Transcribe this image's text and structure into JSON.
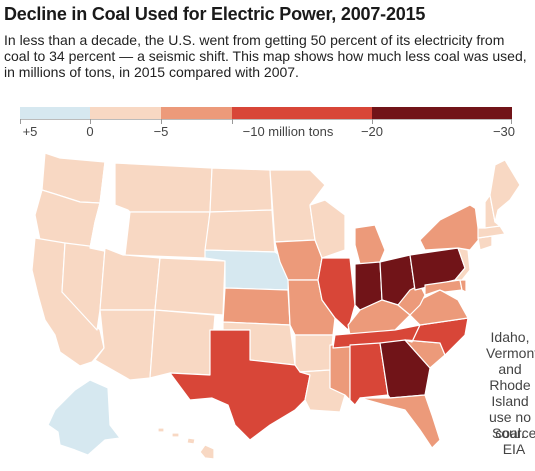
{
  "header": {
    "title": "Decline in Coal Used for Electric Power, 2007-2015",
    "subtitle": "In less than a decade, the U.S. went from getting 50 percent of its electricity from coal to 34 percent — a seismic shift. This map shows how much less coal was used, in millions of tons, in 2015 compared with 2007."
  },
  "legend": {
    "bins": [
      {
        "color": "#d6e8f0"
      },
      {
        "color": "#f8d8c3"
      },
      {
        "color": "#ec9a7a"
      },
      {
        "color": "#d84638"
      },
      {
        "color": "#711418"
      }
    ],
    "labels": [
      "+5",
      "0",
      "−5",
      "−10 million tons",
      "−20",
      "−30"
    ]
  },
  "map": {
    "classes": {
      "gain": "#d6e8f0",
      "small": "#f8d8c3",
      "medium": "#ec9a7a",
      "large": "#d84638",
      "largest": "#711418",
      "none": "#ffffff"
    },
    "states": {
      "WA": "small",
      "OR": "small",
      "CA": "small",
      "NV": "small",
      "ID": "none",
      "MT": "small",
      "WY": "small",
      "UT": "small",
      "AZ": "small",
      "CO": "small",
      "NM": "small",
      "ND": "small",
      "SD": "small",
      "NE": "gain",
      "KS": "medium",
      "OK": "small",
      "TX": "large",
      "MN": "small",
      "IA": "medium",
      "MO": "medium",
      "AR": "small",
      "LA": "small",
      "WI": "small",
      "IL": "large",
      "MS": "medium",
      "MI": "medium",
      "IN": "largest",
      "KY": "medium",
      "TN": "large",
      "AL": "large",
      "OH": "largest",
      "WV": "medium",
      "VA": "medium",
      "NC": "large",
      "SC": "medium",
      "GA": "largest",
      "FL": "medium",
      "PA": "largest",
      "NY": "medium",
      "MD": "medium",
      "DE": "medium",
      "NJ": "small",
      "CT": "small",
      "RI": "none",
      "MA": "small",
      "VT": "none",
      "NH": "small",
      "ME": "small",
      "AK": "gain",
      "HI": "small"
    }
  },
  "note": "Idaho, Vermont and Rhode Island use no coal.",
  "source": "Source: EIA"
}
